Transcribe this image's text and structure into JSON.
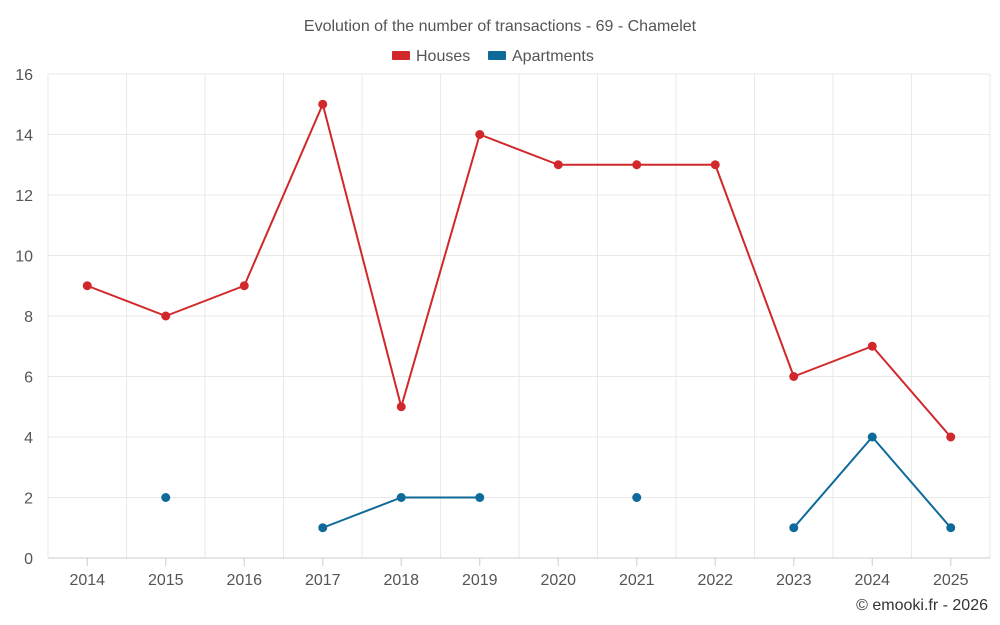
{
  "chart_data": {
    "type": "line",
    "title": "Evolution of the number of transactions - 69 - Chamelet",
    "categories": [
      "2014",
      "2015",
      "2016",
      "2017",
      "2018",
      "2019",
      "2020",
      "2021",
      "2022",
      "2023",
      "2024",
      "2025"
    ],
    "ylim": [
      0,
      16
    ],
    "yticks": [
      0,
      2,
      4,
      6,
      8,
      10,
      12,
      14,
      16
    ],
    "grid": true,
    "legend_position": "top-center",
    "series": [
      {
        "name": "Houses",
        "color": "#d0282b",
        "values": [
          9,
          8,
          9,
          15,
          5,
          14,
          13,
          13,
          13,
          6,
          7,
          4
        ]
      },
      {
        "name": "Apartments",
        "color": "#0d6a99",
        "values": [
          null,
          2,
          null,
          1,
          2,
          2,
          null,
          2,
          null,
          1,
          4,
          1
        ]
      }
    ],
    "credit": "© emooki.fr - 2026"
  }
}
